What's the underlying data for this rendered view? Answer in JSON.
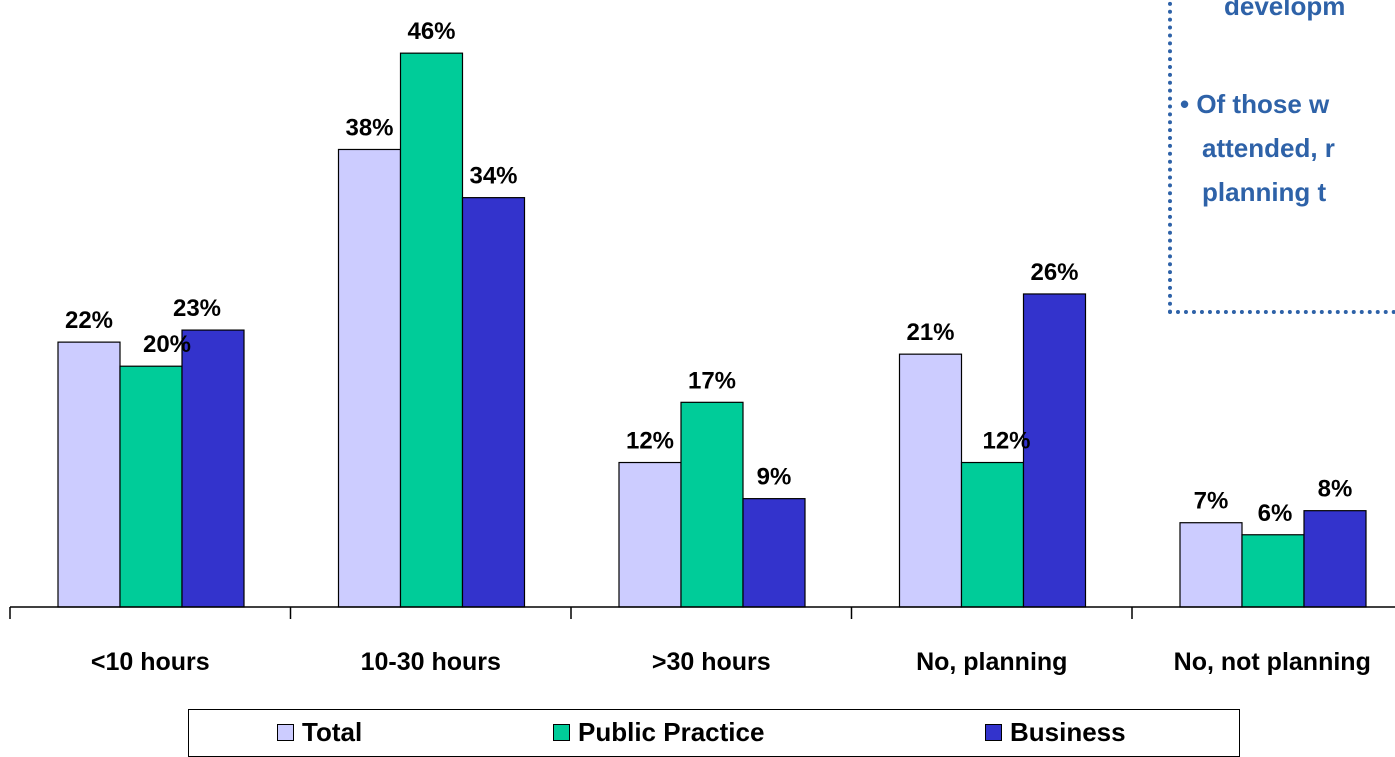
{
  "chart_data": {
    "type": "bar",
    "categories": [
      "<10 hours",
      "10-30 hours",
      ">30 hours",
      "No, planning",
      "No, not planning"
    ],
    "series": [
      {
        "name": "Total",
        "values": [
          22,
          38,
          12,
          21,
          7
        ],
        "labels": [
          "22%",
          "38%",
          "12%",
          "21%",
          "7%"
        ],
        "color": "#ccccff"
      },
      {
        "name": "Public Practice",
        "values": [
          20,
          46,
          17,
          12,
          6
        ],
        "labels": [
          "20%",
          "46%",
          "17%",
          "12%",
          "6%"
        ],
        "color": "#00cc99"
      },
      {
        "name": "Business",
        "values": [
          23,
          34,
          9,
          26,
          8
        ],
        "labels": [
          "23%",
          "34%",
          "9%",
          "26%",
          "8%"
        ],
        "color": "#3333cc"
      }
    ],
    "ylim": [
      0,
      50
    ],
    "grid": false,
    "legend_position": "bottom",
    "title": "",
    "xlabel": "",
    "ylabel": ""
  },
  "note": {
    "lines": [
      "developm",
      "• Of those w",
      "attended, r",
      "planning t"
    ],
    "color": "#2e62a8"
  }
}
